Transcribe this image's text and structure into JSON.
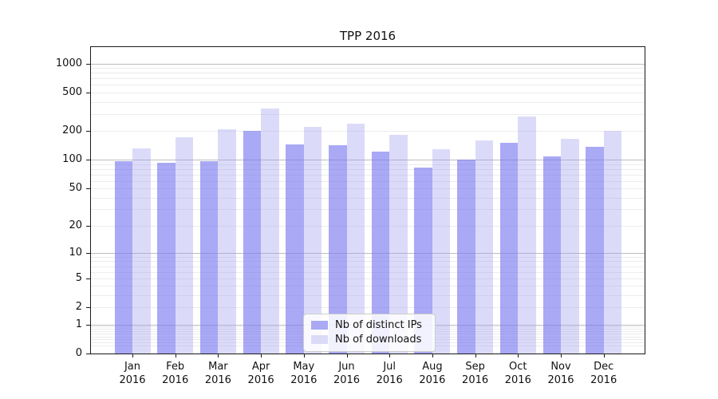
{
  "title": "TPP 2016",
  "legend": {
    "items": [
      {
        "label": "Nb of distinct IPs",
        "swatch_color": "#a9a9f4"
      },
      {
        "label": "Nb of downloads",
        "swatch_color": "#dbdbf8"
      }
    ]
  },
  "colors": {
    "bar_distinct_ips": "rgba(120,120,240,0.64)",
    "bar_downloads": "rgba(160,160,240,0.38)",
    "grid_major": "#bdbdbd",
    "grid_minor": "#ececec",
    "spine": "#1a1a1a"
  },
  "chart_data": {
    "type": "bar",
    "title": "TPP 2016",
    "categories": [
      "Jan",
      "Feb",
      "Mar",
      "Apr",
      "May",
      "Jun",
      "Jul",
      "Aug",
      "Sep",
      "Oct",
      "Nov",
      "Dec"
    ],
    "category_year": "2016",
    "series": [
      {
        "name": "Nb of distinct IPs",
        "color": "rgba(120,120,240,0.64)",
        "values": [
          96,
          94,
          97,
          200,
          146,
          143,
          123,
          83,
          101,
          150,
          108,
          136
        ]
      },
      {
        "name": "Nb of downloads",
        "color": "rgba(160,160,240,0.38)",
        "values": [
          132,
          173,
          210,
          345,
          220,
          236,
          183,
          130,
          158,
          280,
          166,
          200
        ]
      }
    ],
    "ylabel": "",
    "xlabel": "",
    "yscale": "symlog",
    "yticks": [
      1000,
      500,
      200,
      100,
      50,
      20,
      10,
      5,
      2,
      1,
      0
    ],
    "ylim": [
      0,
      1480
    ],
    "grid": true,
    "legend_position": "lower center"
  }
}
